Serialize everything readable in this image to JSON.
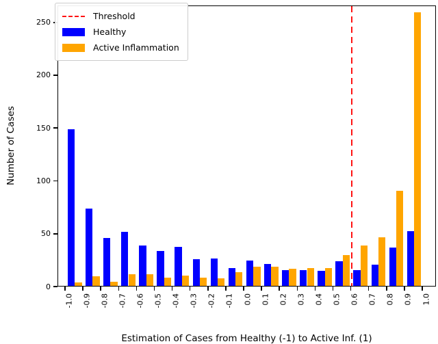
{
  "chart_data": {
    "type": "bar",
    "title": "",
    "xlabel": "Estimation of Cases from Healthy (-1) to Active Inf. (1)",
    "ylabel": "Number of Cases",
    "x_tick_labels": [
      "-1.0",
      "-0.9",
      "-0.8",
      "-0.7",
      "-0.6",
      "-0.5",
      "-0.4",
      "-0.3",
      "-0.2",
      "-0.1",
      "0.0",
      "0.1",
      "0.2",
      "0.3",
      "0.4",
      "0.5",
      "0.6",
      "0.7",
      "0.8",
      "0.9",
      "1.0"
    ],
    "y_ticks": [
      0,
      50,
      100,
      150,
      200,
      250
    ],
    "ylim": [
      0,
      266
    ],
    "grid": false,
    "bin_edges": [
      -1.0,
      -0.9,
      -0.8,
      -0.7,
      -0.6,
      -0.5,
      -0.4,
      -0.3,
      -0.2,
      -0.1,
      0.0,
      0.1,
      0.2,
      0.3,
      0.4,
      0.5,
      0.6,
      0.7,
      0.8,
      0.9,
      1.0
    ],
    "series": [
      {
        "name": "Healthy",
        "color": "#0000ff",
        "values": [
          148,
          73,
          45,
          51,
          38,
          33,
          37,
          25,
          26,
          17,
          24,
          21,
          15,
          15,
          14,
          23,
          15,
          20,
          36,
          52
        ]
      },
      {
        "name": "Active Inflammation",
        "color": "#ffa500",
        "values": [
          3,
          9,
          4,
          11,
          11,
          8,
          10,
          8,
          7,
          13,
          18,
          18,
          16,
          17,
          17,
          29,
          38,
          46,
          90,
          259
        ]
      }
    ],
    "threshold": {
      "label": "Threshold",
      "x": 0.6,
      "color": "#ff1111",
      "style": "dashed"
    },
    "legend": {
      "position": "upper left",
      "entries": [
        {
          "label": "Threshold",
          "swatch": "red-dashed-line"
        },
        {
          "label": "Healthy",
          "swatch": "blue-rect"
        },
        {
          "label": "Active Inflammation",
          "swatch": "orange-rect"
        }
      ]
    }
  }
}
